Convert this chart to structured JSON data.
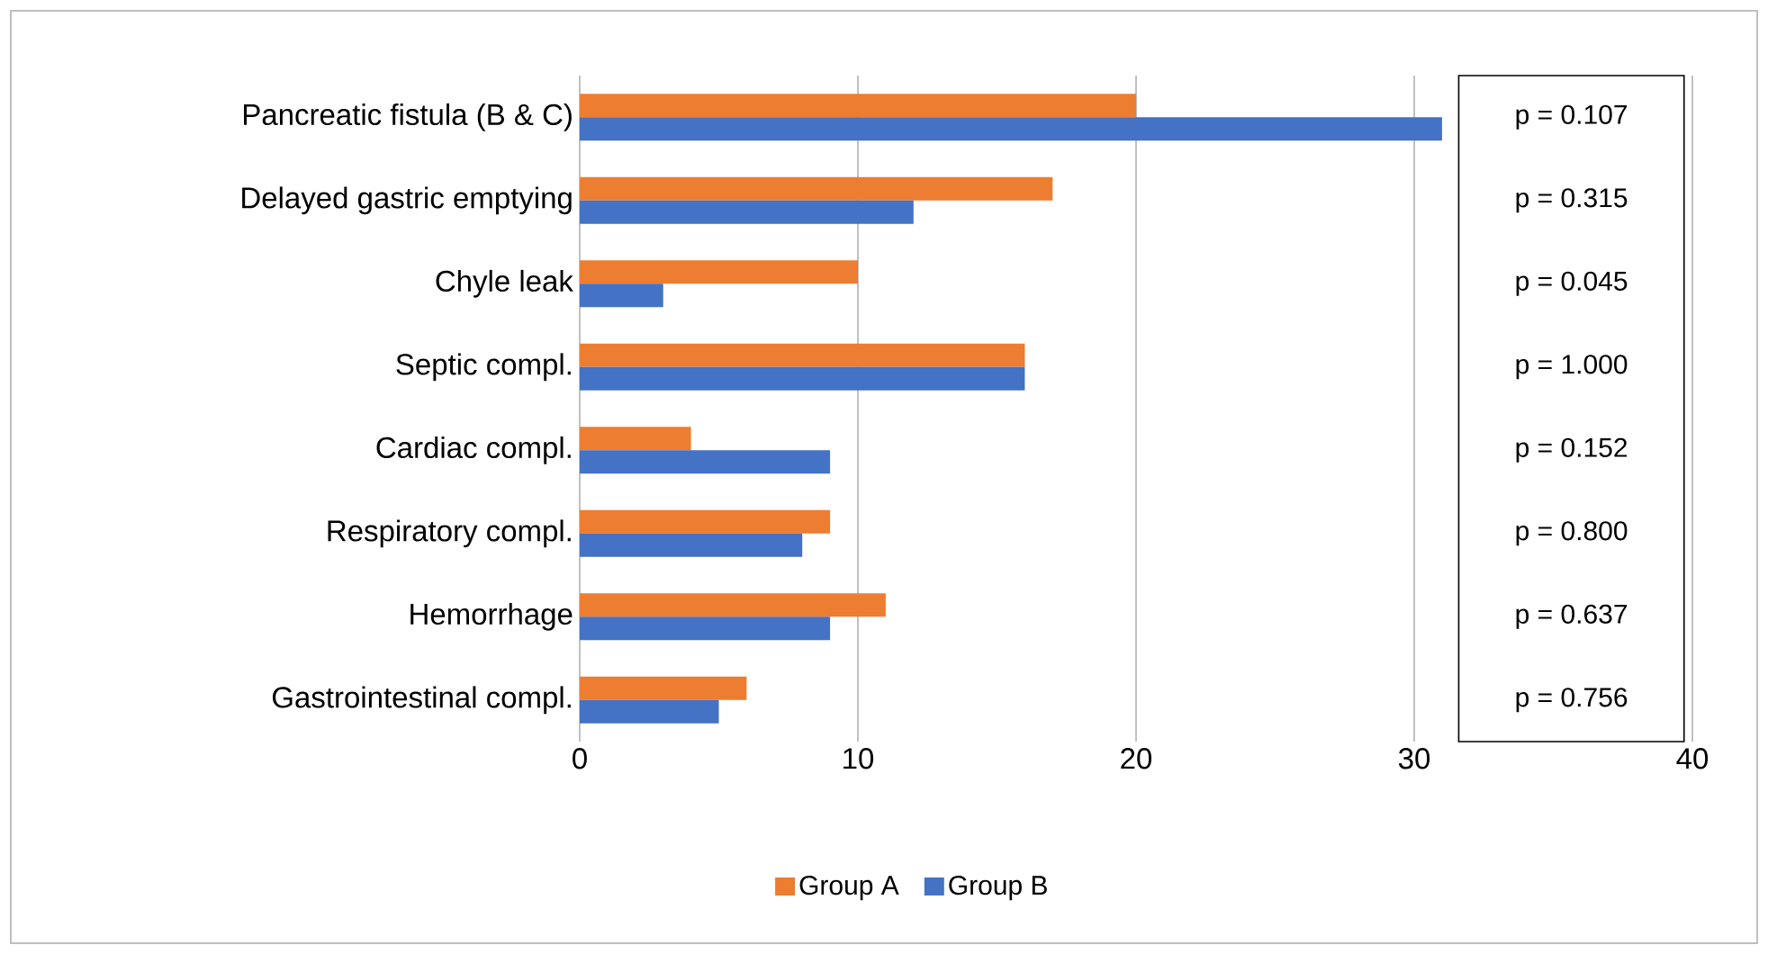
{
  "chart_data": {
    "type": "bar",
    "orientation": "horizontal",
    "categories": [
      "Pancreatic fistula (B & C)",
      "Delayed gastric emptying",
      "Chyle leak",
      "Septic compl.",
      "Cardiac compl.",
      "Respiratory compl.",
      "Hemorrhage",
      "Gastrointestinal compl."
    ],
    "series": [
      {
        "name": "Group A",
        "color": "#ed7d31",
        "values": [
          20,
          17,
          10,
          16,
          4,
          9,
          11,
          6
        ]
      },
      {
        "name": "Group B",
        "color": "#4472c4",
        "values": [
          31,
          12,
          3,
          16,
          9,
          8,
          9,
          5
        ]
      }
    ],
    "xlim": [
      0,
      40
    ],
    "xticks": [
      0,
      10,
      20,
      30,
      40
    ],
    "grid": "x",
    "legend": "bottom",
    "annotations": [
      "p = 0.107",
      "p = 0.315",
      "p = 0.045",
      "p = 1.000",
      "p = 0.152",
      "p = 0.800",
      "p = 0.637",
      "p = 0.756"
    ]
  }
}
